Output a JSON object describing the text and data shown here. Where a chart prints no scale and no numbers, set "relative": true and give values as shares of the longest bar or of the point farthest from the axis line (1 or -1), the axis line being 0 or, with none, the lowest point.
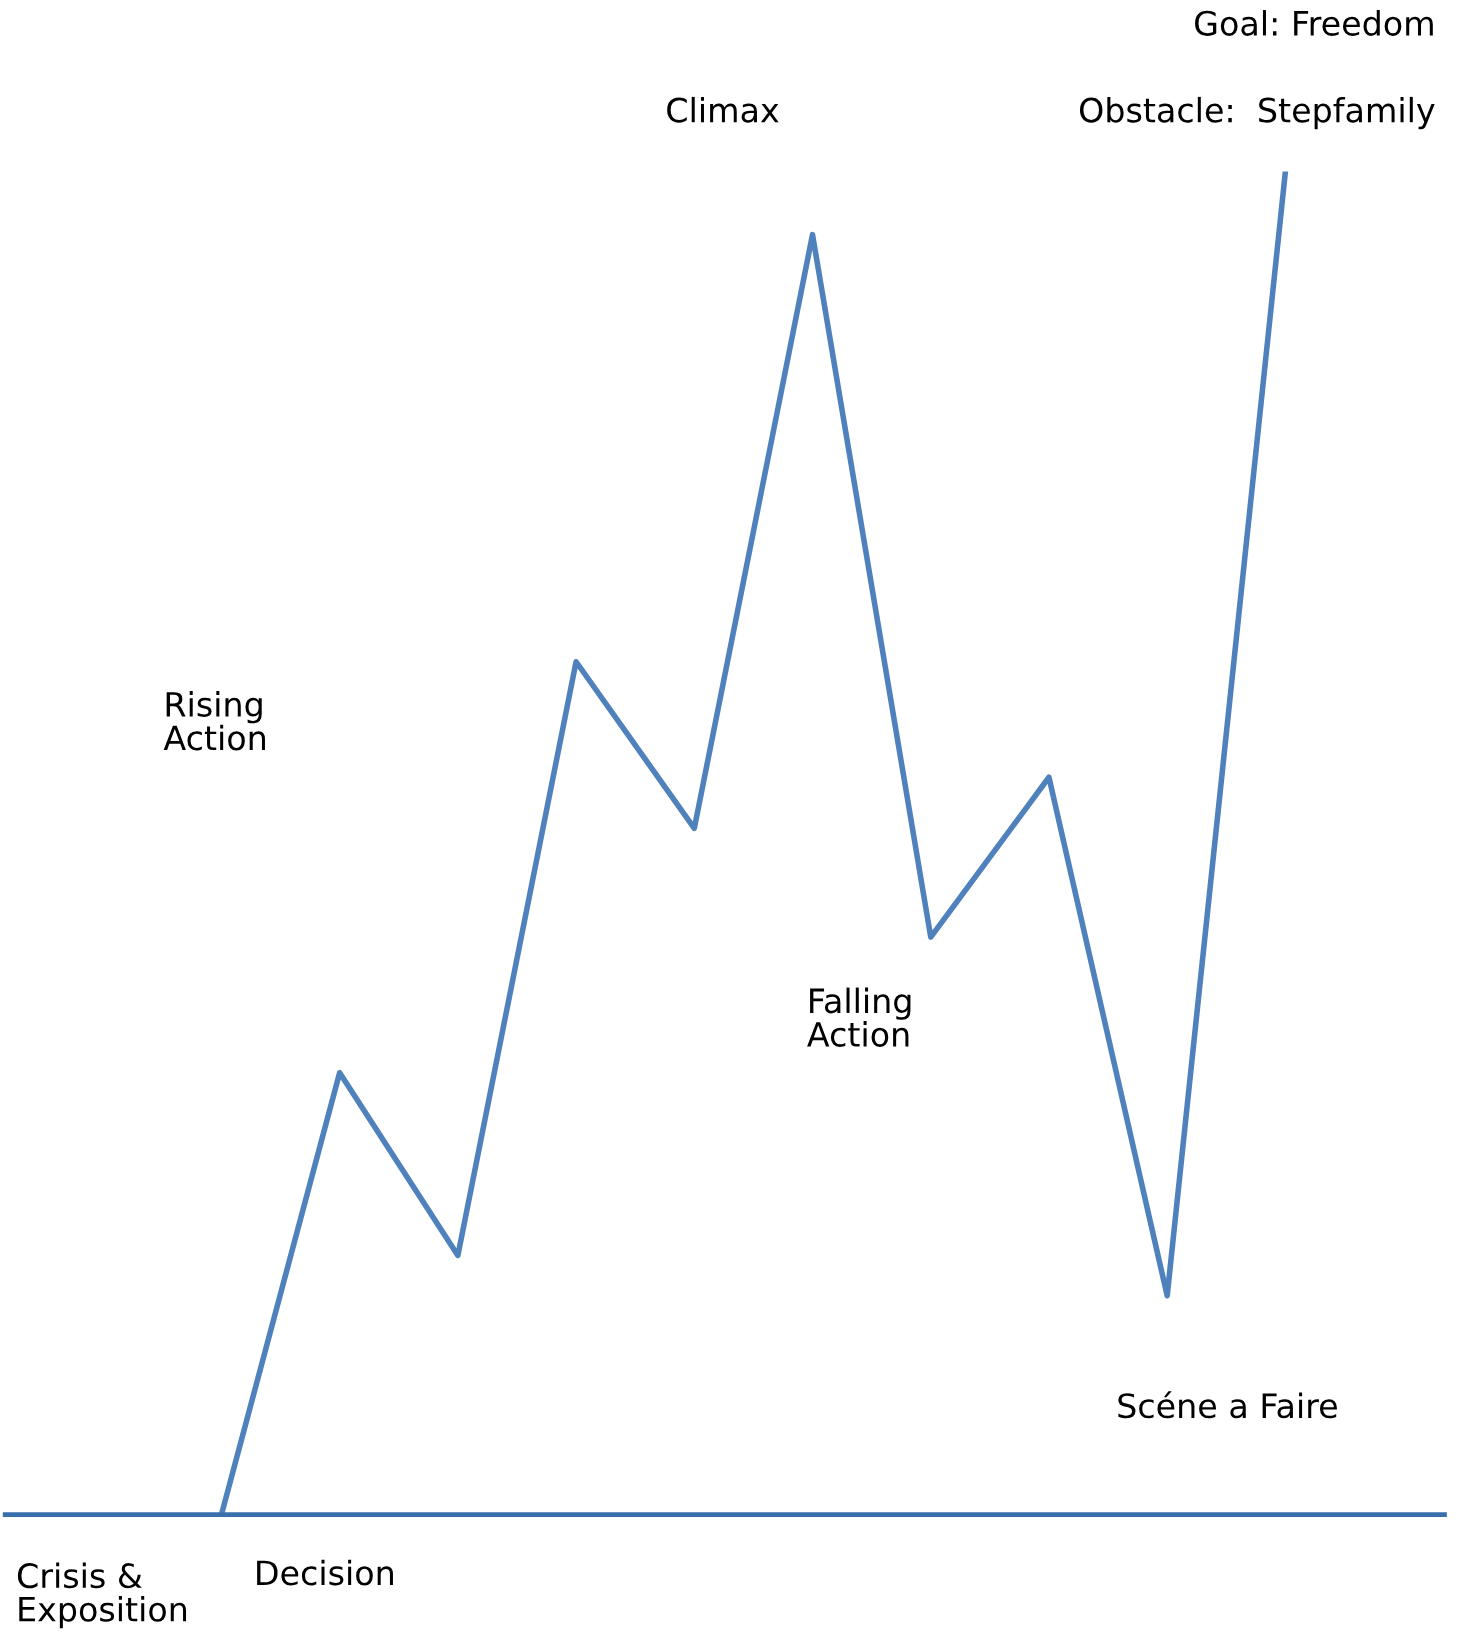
{
  "chart_data": {
    "type": "line",
    "relative": true,
    "legend": false,
    "marker": "none",
    "line_style": "solid",
    "categories": [
      null,
      null,
      null,
      null,
      null,
      null,
      null,
      null,
      null,
      null
    ],
    "series": [
      {
        "color": "#4f81bd",
        "values": [
          0.0,
          0.329,
          0.193,
          0.635,
          0.511,
          0.953,
          0.43,
          0.549,
          0.163,
          1.0
        ]
      }
    ],
    "annotations": [
      "Goal: Freedom",
      "Obstacle:  Stepfamily",
      "Climax",
      "Rising\nAction",
      "Falling\nAction",
      "Scéne a Faire",
      "Decision",
      "Crisis &\nExposition"
    ]
  }
}
